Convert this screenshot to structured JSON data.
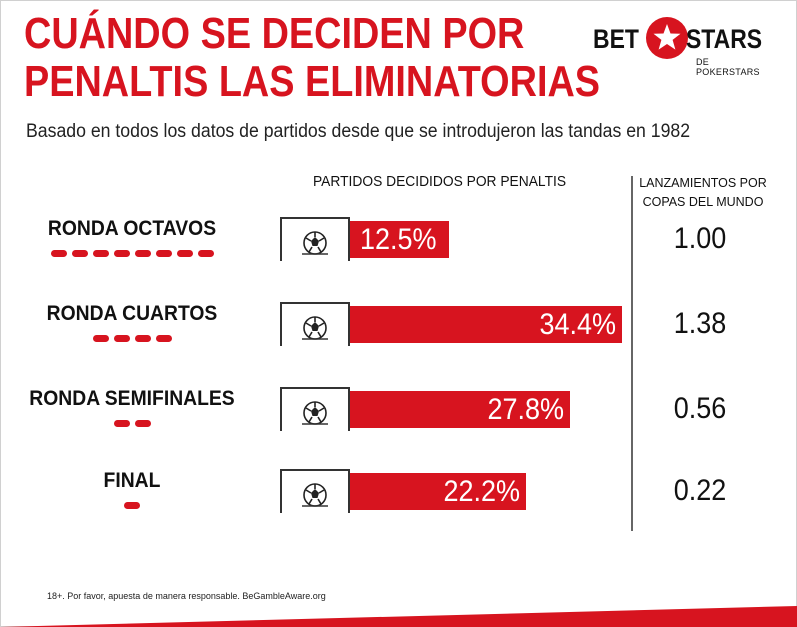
{
  "header": {
    "title_line1": "CUÁNDO SE DECIDEN POR",
    "title_line2": "PENALTIS LAS ELIMINATORIAS",
    "subtitle": "Basado en todos los datos de partidos desde que se introdujeron las tandas en 1982"
  },
  "logo": {
    "bet": "BET",
    "stars": "STARS",
    "sub": "DE POKERSTARS"
  },
  "columns": {
    "left": "PARTIDOS DECIDIDOS POR PENALTIS",
    "right_line1": "LANZAMIENTOS POR",
    "right_line2": "COPAS DEL MUNDO"
  },
  "chart_data": {
    "type": "bar",
    "title": "CUÁNDO SE DECIDEN POR PENALTIS LAS ELIMINATORIAS",
    "subtitle": "Basado en todos los datos de partidos desde que se introdujeron las tandas en 1982",
    "categories": [
      "RONDA OCTAVOS",
      "RONDA CUARTOS",
      "RONDA SEMIFINALES",
      "FINAL"
    ],
    "series": [
      {
        "name": "PARTIDOS DECIDIDOS POR PENALTIS",
        "values": [
          12.5,
          34.4,
          27.8,
          22.2
        ],
        "labels": [
          "12.5%",
          "34.4%",
          "27.8%",
          "22.2%"
        ]
      },
      {
        "name": "LANZAMIENTOS POR COPAS DEL MUNDO",
        "values": [
          1.0,
          1.38,
          0.56,
          0.22
        ],
        "labels": [
          "1.00",
          "1.38",
          "0.56",
          "0.22"
        ]
      }
    ],
    "dash_counts": [
      8,
      4,
      2,
      1
    ],
    "xlim": [
      0,
      34.4
    ],
    "orientation": "horizontal"
  },
  "footer": "18+. Por favor, apuesta de manera responsable. BeGambleAware.org",
  "colors": {
    "accent": "#d7141f",
    "text": "#111111"
  }
}
